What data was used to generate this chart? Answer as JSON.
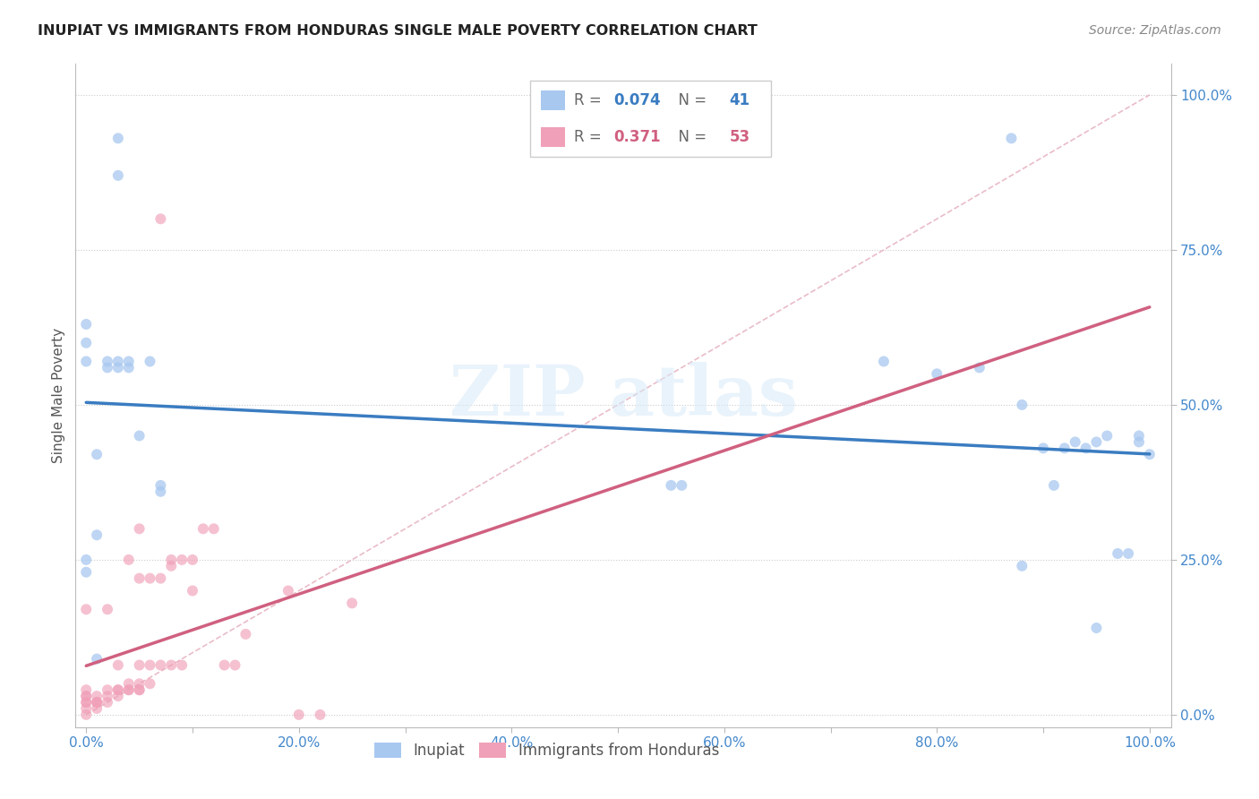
{
  "title": "INUPIAT VS IMMIGRANTS FROM HONDURAS SINGLE MALE POVERTY CORRELATION CHART",
  "source": "Source: ZipAtlas.com",
  "ylabel": "Single Male Poverty",
  "x_tick_labels": [
    "0.0%",
    "",
    "20.0%",
    "",
    "40.0%",
    "",
    "60.0%",
    "",
    "80.0%",
    "",
    "100.0%"
  ],
  "x_tick_vals": [
    0,
    0.1,
    0.2,
    0.3,
    0.4,
    0.5,
    0.6,
    0.7,
    0.8,
    0.9,
    1.0
  ],
  "y_tick_labels": [
    "0.0%",
    "25.0%",
    "50.0%",
    "75.0%",
    "100.0%"
  ],
  "y_tick_vals": [
    0,
    0.25,
    0.5,
    0.75,
    1.0
  ],
  "xlim": [
    -0.01,
    1.02
  ],
  "ylim": [
    -0.02,
    1.05
  ],
  "color_blue": "#a8c8f0",
  "color_pink": "#f0a0b8",
  "color_blue_line": "#3a7cc1",
  "color_pink_line": "#d06080",
  "color_diag": "#cccccc",
  "inupiat_x": [
    0.03,
    0.03,
    0.0,
    0.0,
    0.0,
    0.01,
    0.01,
    0.02,
    0.02,
    0.03,
    0.03,
    0.04,
    0.04,
    0.05,
    0.06,
    0.07,
    0.07,
    0.0,
    0.0,
    0.01,
    0.55,
    0.56,
    0.75,
    0.8,
    0.84,
    0.87,
    0.88,
    0.9,
    0.92,
    0.93,
    0.94,
    0.95,
    0.96,
    0.97,
    0.98,
    0.99,
    0.99,
    1.0,
    0.88,
    0.91,
    0.95
  ],
  "inupiat_y": [
    0.93,
    0.87,
    0.6,
    0.57,
    0.25,
    0.09,
    0.29,
    0.56,
    0.57,
    0.57,
    0.56,
    0.57,
    0.56,
    0.45,
    0.57,
    0.37,
    0.36,
    0.23,
    0.63,
    0.42,
    0.37,
    0.37,
    0.57,
    0.55,
    0.56,
    0.93,
    0.5,
    0.43,
    0.43,
    0.44,
    0.43,
    0.44,
    0.45,
    0.26,
    0.26,
    0.44,
    0.45,
    0.42,
    0.24,
    0.37,
    0.14
  ],
  "honduras_x": [
    0.0,
    0.0,
    0.0,
    0.0,
    0.0,
    0.0,
    0.0,
    0.0,
    0.01,
    0.01,
    0.01,
    0.01,
    0.01,
    0.02,
    0.02,
    0.02,
    0.02,
    0.03,
    0.03,
    0.03,
    0.03,
    0.04,
    0.04,
    0.04,
    0.04,
    0.05,
    0.05,
    0.05,
    0.05,
    0.05,
    0.06,
    0.06,
    0.06,
    0.07,
    0.07,
    0.08,
    0.08,
    0.09,
    0.09,
    0.1,
    0.1,
    0.11,
    0.12,
    0.13,
    0.14,
    0.15,
    0.19,
    0.2,
    0.22,
    0.25,
    0.07,
    0.08,
    0.05
  ],
  "honduras_y": [
    0.0,
    0.01,
    0.02,
    0.02,
    0.03,
    0.03,
    0.04,
    0.17,
    0.01,
    0.02,
    0.02,
    0.02,
    0.03,
    0.02,
    0.03,
    0.04,
    0.17,
    0.03,
    0.04,
    0.04,
    0.08,
    0.04,
    0.04,
    0.05,
    0.25,
    0.04,
    0.04,
    0.05,
    0.22,
    0.08,
    0.05,
    0.22,
    0.08,
    0.22,
    0.08,
    0.24,
    0.08,
    0.25,
    0.08,
    0.2,
    0.25,
    0.3,
    0.3,
    0.08,
    0.08,
    0.13,
    0.2,
    0.0,
    0.0,
    0.18,
    0.8,
    0.25,
    0.3
  ]
}
